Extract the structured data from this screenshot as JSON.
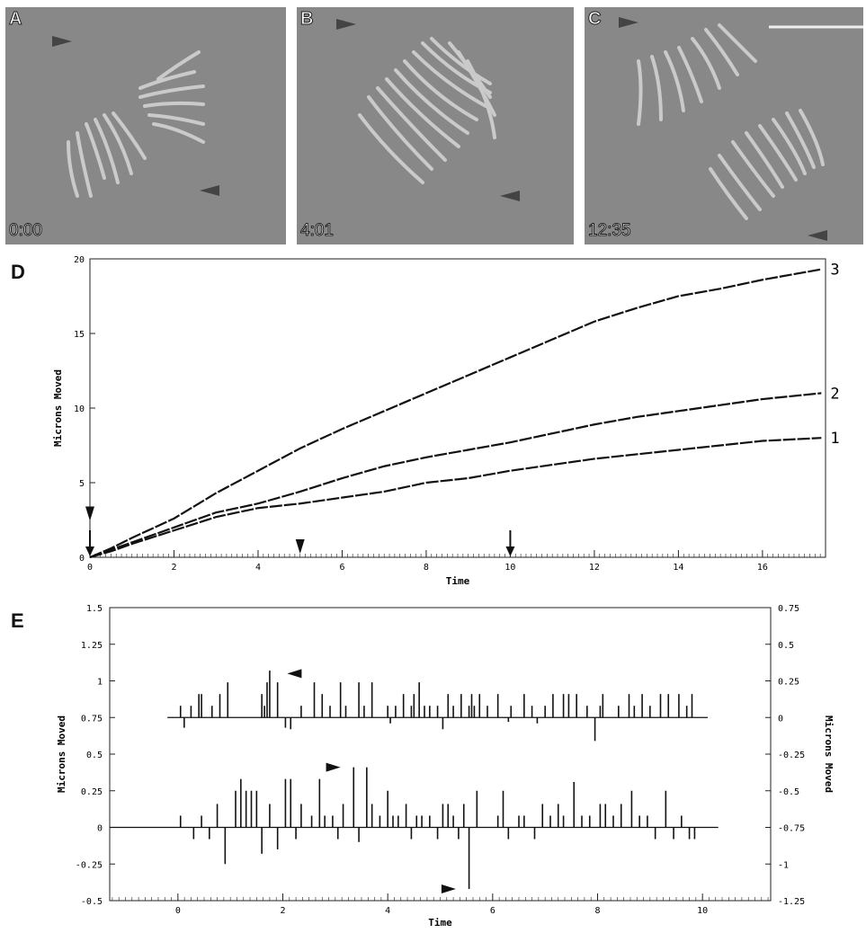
{
  "panels": {
    "a": {
      "letter": "A",
      "time": "0:00"
    },
    "b": {
      "letter": "B",
      "time": "4:01"
    },
    "c": {
      "letter": "C",
      "time": "12:35"
    },
    "d": {
      "letter": "D"
    },
    "e": {
      "letter": "E"
    }
  },
  "chart_data": [
    {
      "type": "line",
      "panel": "D",
      "xlabel": "Time",
      "ylabel": "Microns Moved",
      "xlim": [
        0,
        17.5
      ],
      "ylim": [
        0,
        20
      ],
      "x_ticks": [
        "0",
        "2",
        "4",
        "6",
        "8",
        "10",
        "12",
        "14",
        "16"
      ],
      "y_ticks": [
        "0",
        "5",
        "10",
        "15",
        "20"
      ],
      "series": [
        {
          "name": "1",
          "x": [
            0,
            0.5,
            1,
            2,
            3,
            4,
            5,
            6,
            7,
            8,
            9,
            10,
            11,
            12,
            13,
            14,
            15,
            16,
            17.4
          ],
          "y": [
            0,
            0.4,
            0.9,
            1.8,
            2.7,
            3.3,
            3.6,
            4.0,
            4.4,
            5.0,
            5.3,
            5.8,
            6.2,
            6.6,
            6.9,
            7.2,
            7.5,
            7.8,
            8.0
          ]
        },
        {
          "name": "2",
          "x": [
            0,
            0.5,
            1,
            2,
            3,
            4,
            5,
            6,
            7,
            8,
            9,
            10,
            11,
            12,
            13,
            14,
            15,
            16,
            17.4
          ],
          "y": [
            0,
            0.5,
            1.0,
            2.0,
            3.0,
            3.6,
            4.4,
            5.3,
            6.1,
            6.7,
            7.2,
            7.7,
            8.3,
            8.9,
            9.4,
            9.8,
            10.2,
            10.6,
            11.0
          ]
        },
        {
          "name": "3",
          "x": [
            0,
            0.5,
            1,
            2,
            3,
            4,
            5,
            6,
            7,
            8,
            9,
            10,
            11,
            12,
            13,
            14,
            15,
            16,
            17.4
          ],
          "y": [
            0,
            0.6,
            1.3,
            2.6,
            4.3,
            5.8,
            7.3,
            8.6,
            9.8,
            11.0,
            12.2,
            13.4,
            14.6,
            15.8,
            16.7,
            17.5,
            18.0,
            18.6,
            19.3
          ]
        }
      ],
      "annotations": [
        {
          "kind": "arrow",
          "x": 0,
          "y": 0
        },
        {
          "kind": "arrowhead",
          "x": 0,
          "y": 2.2
        },
        {
          "kind": "arrowhead",
          "x": 5,
          "y": 0
        },
        {
          "kind": "arrow",
          "x": 10,
          "y": 0
        }
      ]
    },
    {
      "type": "bar",
      "panel": "E",
      "xlabel": "Time",
      "ylabel": "Microns Moved",
      "ylabel_right": "Microns Moved",
      "xlim": [
        -1.3,
        11.3
      ],
      "ylim": [
        -0.5,
        1.5
      ],
      "ylim_right": [
        -1.25,
        0.75
      ],
      "x_ticks": [
        "0",
        "2",
        "4",
        "6",
        "8",
        "10"
      ],
      "y_ticks": [
        "-0.5",
        "-0.25",
        "0",
        "0.25",
        "0.5",
        "0.75",
        "1",
        "1.25",
        "1.5"
      ],
      "y_ticks_right": [
        "-1.25",
        "-1",
        "-0.75",
        "-0.5",
        "-0.25",
        "0",
        "0.25",
        "0.5",
        "0.75"
      ],
      "series": [
        {
          "name": "upper",
          "baseline": 0.75,
          "x_start": -0.2,
          "x_end": 10.1,
          "x": [
            0.05,
            0.12,
            0.25,
            0.4,
            0.45,
            0.65,
            0.8,
            0.95,
            1.6,
            1.65,
            1.7,
            1.75,
            1.9,
            2.05,
            2.15,
            2.35,
            2.6,
            2.75,
            2.9,
            3.1,
            3.2,
            3.45,
            3.55,
            3.7,
            4.0,
            4.05,
            4.15,
            4.3,
            4.45,
            4.5,
            4.6,
            4.7,
            4.8,
            4.95,
            5.05,
            5.15,
            5.25,
            5.4,
            5.55,
            5.6,
            5.65,
            5.75,
            5.9,
            6.1,
            6.3,
            6.35,
            6.6,
            6.75,
            6.85,
            7.0,
            7.15,
            7.35,
            7.45,
            7.6,
            7.8,
            7.95,
            8.05,
            8.1,
            8.4,
            8.6,
            8.7,
            8.85,
            9.0,
            9.2,
            9.35,
            9.55,
            9.7,
            9.8
          ],
          "values": [
            0.08,
            -0.07,
            0.08,
            0.16,
            0.16,
            0.08,
            0.16,
            0.24,
            0.16,
            0.08,
            0.24,
            0.32,
            0.24,
            -0.07,
            -0.08,
            0.08,
            0.24,
            0.16,
            0.08,
            0.24,
            0.08,
            0.24,
            0.08,
            0.24,
            0.08,
            -0.04,
            0.08,
            0.16,
            0.08,
            0.16,
            0.24,
            0.08,
            0.08,
            0.08,
            -0.08,
            0.16,
            0.08,
            0.16,
            0.08,
            0.16,
            0.08,
            0.16,
            0.08,
            0.16,
            -0.03,
            0.08,
            0.16,
            0.08,
            -0.04,
            0.08,
            0.16,
            0.16,
            0.16,
            0.16,
            0.08,
            -0.16,
            0.08,
            0.16,
            0.08,
            0.16,
            0.08,
            0.16,
            0.08,
            0.16,
            0.16,
            0.16,
            0.08,
            0.16
          ]
        },
        {
          "name": "lower",
          "baseline": 0,
          "x_start": -1.3,
          "x_end": 10.3,
          "x": [
            0.05,
            0.3,
            0.45,
            0.6,
            0.75,
            0.9,
            1.1,
            1.2,
            1.3,
            1.4,
            1.5,
            1.6,
            1.75,
            1.9,
            2.05,
            2.15,
            2.25,
            2.35,
            2.55,
            2.7,
            2.8,
            2.95,
            3.05,
            3.15,
            3.35,
            3.45,
            3.6,
            3.7,
            3.85,
            4.0,
            4.1,
            4.2,
            4.35,
            4.45,
            4.55,
            4.65,
            4.8,
            4.95,
            5.05,
            5.15,
            5.25,
            5.35,
            5.45,
            5.55,
            5.7,
            6.1,
            6.2,
            6.3,
            6.5,
            6.6,
            6.8,
            6.95,
            7.1,
            7.25,
            7.35,
            7.55,
            7.7,
            7.85,
            8.05,
            8.15,
            8.3,
            8.45,
            8.65,
            8.8,
            8.95,
            9.1,
            9.3,
            9.45,
            9.6,
            9.75,
            9.85
          ],
          "values": [
            0.08,
            -0.08,
            0.08,
            -0.08,
            0.16,
            -0.25,
            0.25,
            0.33,
            0.25,
            0.25,
            0.25,
            -0.18,
            0.16,
            -0.15,
            0.33,
            0.33,
            -0.08,
            0.16,
            0.08,
            0.33,
            0.08,
            0.08,
            -0.08,
            0.16,
            0.41,
            -0.1,
            0.41,
            0.16,
            0.08,
            0.25,
            0.08,
            0.08,
            0.16,
            -0.08,
            0.08,
            0.08,
            0.08,
            -0.08,
            0.16,
            0.16,
            0.08,
            -0.08,
            0.16,
            -0.42,
            0.25,
            0.08,
            0.25,
            -0.08,
            0.08,
            0.08,
            -0.08,
            0.16,
            0.08,
            0.16,
            0.08,
            0.31,
            0.08,
            0.08,
            0.16,
            0.16,
            0.08,
            0.16,
            0.25,
            0.08,
            0.08,
            -0.08,
            0.25,
            -0.08,
            0.08,
            -0.08,
            -0.08
          ]
        }
      ],
      "annotations": [
        {
          "kind": "arrowhead",
          "series": "upper",
          "x": 2.05,
          "y": 1.05,
          "direction": "left"
        },
        {
          "kind": "arrowhead",
          "series": "lower",
          "x": 3.15,
          "y": 0.41,
          "direction": "right"
        },
        {
          "kind": "arrowhead",
          "series": "lower",
          "x": 5.35,
          "y": -0.42,
          "direction": "right"
        }
      ]
    }
  ]
}
